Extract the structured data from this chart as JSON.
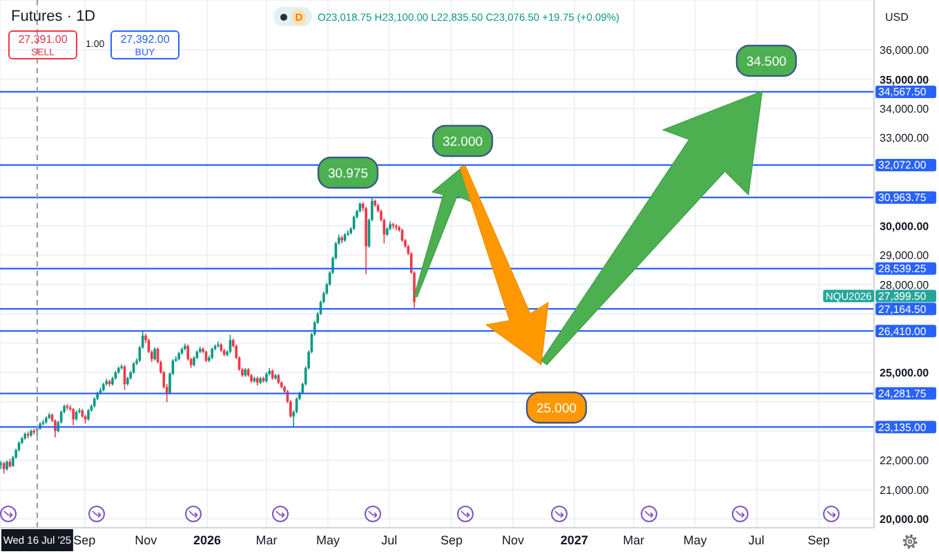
{
  "chart_data": {
    "type": "candlestick",
    "title": "Futures · 1D",
    "x": [
      "2025-06-10",
      "2025-06-13",
      "2025-06-16",
      "2025-06-19",
      "2025-06-22",
      "2025-06-25",
      "2025-06-28",
      "2025-07-01",
      "2025-07-04",
      "2025-07-07",
      "2025-07-10",
      "2025-07-13",
      "2025-07-16",
      "2025-07-19",
      "2025-07-22",
      "2025-07-25",
      "2025-07-28",
      "2025-07-31",
      "2025-08-03",
      "2025-08-06",
      "2025-08-09",
      "2025-08-12",
      "2025-08-15",
      "2025-08-18",
      "2025-08-21",
      "2025-08-24",
      "2025-08-27",
      "2025-08-30",
      "2025-09-02",
      "2025-09-05",
      "2025-09-08",
      "2025-09-11",
      "2025-09-14",
      "2025-09-17",
      "2025-09-20",
      "2025-09-23",
      "2025-09-26",
      "2025-09-29",
      "2025-10-02",
      "2025-10-05",
      "2025-10-08",
      "2025-10-11",
      "2025-10-14",
      "2025-10-17",
      "2025-10-20",
      "2025-10-23",
      "2025-10-26",
      "2025-10-29",
      "2025-11-01",
      "2025-11-04",
      "2025-11-07",
      "2025-11-10",
      "2025-11-13",
      "2025-11-16",
      "2025-11-19",
      "2025-11-22",
      "2025-11-25",
      "2025-11-28",
      "2025-12-01",
      "2025-12-04",
      "2025-12-07",
      "2025-12-10",
      "2025-12-13",
      "2025-12-16",
      "2025-12-19",
      "2025-12-22",
      "2025-12-25",
      "2025-12-28",
      "2025-12-31",
      "2026-01-03",
      "2026-01-06",
      "2026-01-09",
      "2026-01-12",
      "2026-01-15",
      "2026-01-18",
      "2026-01-21",
      "2026-01-24",
      "2026-01-27",
      "2026-01-30",
      "2026-02-02",
      "2026-02-05",
      "2026-02-08",
      "2026-02-11",
      "2026-02-14",
      "2026-02-17",
      "2026-02-20",
      "2026-02-23",
      "2026-02-26",
      "2026-03-01",
      "2026-03-04",
      "2026-03-07",
      "2026-03-10",
      "2026-03-13",
      "2026-03-16",
      "2026-03-19",
      "2026-03-22",
      "2026-03-25",
      "2026-03-28",
      "2026-03-31",
      "2026-04-03",
      "2026-04-06",
      "2026-04-09",
      "2026-04-12",
      "2026-04-15",
      "2026-04-18",
      "2026-04-21",
      "2026-04-24",
      "2026-04-27",
      "2026-04-30",
      "2026-05-03",
      "2026-05-06",
      "2026-05-09",
      "2026-05-12",
      "2026-05-15",
      "2026-05-18",
      "2026-05-21",
      "2026-05-24",
      "2026-05-27",
      "2026-05-30",
      "2026-06-02",
      "2026-06-05",
      "2026-06-08",
      "2026-06-11",
      "2026-06-14",
      "2026-06-17",
      "2026-06-20",
      "2026-06-23",
      "2026-06-26",
      "2026-06-29",
      "2026-07-02",
      "2026-07-05",
      "2026-07-08",
      "2026-07-11",
      "2026-07-14",
      "2026-07-17",
      "2026-07-20",
      "2026-07-23",
      "2026-07-26"
    ],
    "ohlc": [
      [
        21850,
        21980,
        21700,
        21900
      ],
      [
        21900,
        21950,
        21550,
        21700
      ],
      [
        21700,
        22000,
        21650,
        21950
      ],
      [
        21950,
        22050,
        21750,
        21800
      ],
      [
        21800,
        22150,
        21780,
        22100
      ],
      [
        22100,
        22400,
        22050,
        22350
      ],
      [
        22350,
        22650,
        22300,
        22600
      ],
      [
        22600,
        22800,
        22550,
        22750
      ],
      [
        22750,
        22950,
        22700,
        22900
      ],
      [
        22900,
        22980,
        22750,
        22850
      ],
      [
        22850,
        23050,
        22800,
        23000
      ],
      [
        23000,
        23080,
        22880,
        22950
      ],
      [
        23018.75,
        23100,
        22835.5,
        23076.5
      ],
      [
        23076.5,
        23300,
        23050,
        23250
      ],
      [
        23250,
        23380,
        23180,
        23300
      ],
      [
        23300,
        23500,
        23250,
        23450
      ],
      [
        23450,
        23620,
        23400,
        23550
      ],
      [
        23550,
        23600,
        23300,
        23350
      ],
      [
        23350,
        23400,
        22780,
        23000
      ],
      [
        23000,
        23350,
        22950,
        23300
      ],
      [
        23300,
        23700,
        23250,
        23650
      ],
      [
        23650,
        23900,
        23600,
        23850
      ],
      [
        23850,
        23920,
        23720,
        23800
      ],
      [
        23800,
        23880,
        23680,
        23750
      ],
      [
        23750,
        23780,
        23200,
        23400
      ],
      [
        23400,
        23700,
        23350,
        23650
      ],
      [
        23650,
        23780,
        23600,
        23700
      ],
      [
        23700,
        23750,
        23450,
        23500
      ],
      [
        23500,
        23550,
        23250,
        23400
      ],
      [
        23400,
        23750,
        23350,
        23700
      ],
      [
        23700,
        23900,
        23650,
        23850
      ],
      [
        23850,
        24150,
        23800,
        24100
      ],
      [
        24100,
        24350,
        24050,
        24300
      ],
      [
        24300,
        24480,
        24250,
        24400
      ],
      [
        24400,
        24650,
        24350,
        24600
      ],
      [
        24600,
        24780,
        24550,
        24700
      ],
      [
        24700,
        24750,
        24520,
        24600
      ],
      [
        24600,
        24850,
        24550,
        24800
      ],
      [
        24800,
        25050,
        24750,
        25000
      ],
      [
        25000,
        25200,
        24950,
        25150
      ],
      [
        25150,
        25280,
        25100,
        25200
      ],
      [
        25200,
        25250,
        24400,
        24600
      ],
      [
        24600,
        24850,
        24550,
        24800
      ],
      [
        24800,
        25050,
        24750,
        25000
      ],
      [
        25000,
        25350,
        24950,
        25300
      ],
      [
        25300,
        25480,
        25250,
        25400
      ],
      [
        25400,
        25900,
        25350,
        25850
      ],
      [
        25850,
        26400,
        25800,
        26250
      ],
      [
        26250,
        26320,
        26000,
        26100
      ],
      [
        26100,
        26150,
        25650,
        25700
      ],
      [
        25700,
        25750,
        25350,
        25450
      ],
      [
        25450,
        25850,
        25400,
        25800
      ],
      [
        25800,
        25850,
        25300,
        25350
      ],
      [
        25350,
        25400,
        24950,
        25000
      ],
      [
        25000,
        25050,
        24450,
        24500
      ],
      [
        24500,
        24600,
        23980,
        24300
      ],
      [
        24300,
        25000,
        24250,
        24950
      ],
      [
        24950,
        25450,
        24900,
        25400
      ],
      [
        25400,
        25550,
        25350,
        25450
      ],
      [
        25450,
        25700,
        25400,
        25650
      ],
      [
        25650,
        25850,
        25600,
        25800
      ],
      [
        25800,
        25980,
        25750,
        25900
      ],
      [
        25900,
        25950,
        25400,
        25450
      ],
      [
        25450,
        25500,
        25150,
        25250
      ],
      [
        25250,
        25550,
        25200,
        25500
      ],
      [
        25500,
        25750,
        25450,
        25700
      ],
      [
        25700,
        25880,
        25650,
        25800
      ],
      [
        25800,
        25850,
        25650,
        25700
      ],
      [
        25700,
        25750,
        25350,
        25400
      ],
      [
        25400,
        25580,
        25350,
        25500
      ],
      [
        25500,
        25850,
        25450,
        25800
      ],
      [
        25800,
        25950,
        25750,
        25900
      ],
      [
        25900,
        26050,
        25850,
        25950
      ],
      [
        25950,
        26000,
        25700,
        25750
      ],
      [
        25750,
        25800,
        25550,
        25600
      ],
      [
        25600,
        25750,
        25550,
        25700
      ],
      [
        25700,
        26280,
        25650,
        26100
      ],
      [
        26100,
        26150,
        25850,
        25900
      ],
      [
        25900,
        25950,
        25450,
        25500
      ],
      [
        25500,
        25550,
        25050,
        25100
      ],
      [
        25100,
        25150,
        24850,
        24900
      ],
      [
        24900,
        25150,
        24850,
        25100
      ],
      [
        25100,
        25150,
        24850,
        24900
      ],
      [
        24900,
        24950,
        24650,
        24700
      ],
      [
        24700,
        24850,
        24650,
        24800
      ],
      [
        24800,
        24850,
        24550,
        24650
      ],
      [
        24650,
        24850,
        24600,
        24800
      ],
      [
        24800,
        24850,
        24650,
        24700
      ],
      [
        24700,
        25000,
        24650,
        24950
      ],
      [
        24950,
        25150,
        24900,
        25050
      ],
      [
        25050,
        25100,
        24750,
        24800
      ],
      [
        24800,
        24950,
        24750,
        24900
      ],
      [
        24900,
        24950,
        24600,
        24650
      ],
      [
        24650,
        24700,
        24450,
        24500
      ],
      [
        24500,
        24550,
        24300,
        24350
      ],
      [
        24350,
        24400,
        23950,
        24000
      ],
      [
        24000,
        24050,
        23450,
        23500
      ],
      [
        23500,
        23700,
        23120,
        23650
      ],
      [
        23650,
        24150,
        23600,
        24100
      ],
      [
        24100,
        24350,
        24050,
        24300
      ],
      [
        24300,
        24650,
        24250,
        24600
      ],
      [
        24600,
        25200,
        24550,
        25150
      ],
      [
        25150,
        25750,
        25100,
        25700
      ],
      [
        25700,
        26350,
        25650,
        26300
      ],
      [
        26300,
        26750,
        26250,
        26700
      ],
      [
        26700,
        27050,
        26650,
        27000
      ],
      [
        27000,
        27450,
        26950,
        27400
      ],
      [
        27400,
        27750,
        27350,
        27700
      ],
      [
        27700,
        28050,
        27650,
        28000
      ],
      [
        28000,
        28450,
        27950,
        28400
      ],
      [
        28400,
        28950,
        28350,
        28900
      ],
      [
        28900,
        29450,
        28850,
        29400
      ],
      [
        29400,
        29700,
        29350,
        29600
      ],
      [
        29600,
        29650,
        29400,
        29500
      ],
      [
        29500,
        29750,
        29450,
        29700
      ],
      [
        29700,
        29850,
        29650,
        29750
      ],
      [
        29750,
        29950,
        29700,
        29900
      ],
      [
        29900,
        30350,
        29850,
        30300
      ],
      [
        30300,
        30550,
        30250,
        30500
      ],
      [
        30500,
        30800,
        30450,
        30750
      ],
      [
        30750,
        30800,
        30500,
        30600
      ],
      [
        30600,
        30650,
        28350,
        29300
      ],
      [
        29300,
        30250,
        29250,
        30200
      ],
      [
        30200,
        30950,
        30150,
        30850
      ],
      [
        30850,
        30900,
        30650,
        30700
      ],
      [
        30700,
        30750,
        30450,
        30500
      ],
      [
        30500,
        30550,
        30150,
        30200
      ],
      [
        30200,
        30250,
        29400,
        29700
      ],
      [
        29700,
        29950,
        29650,
        29900
      ],
      [
        29900,
        30150,
        29850,
        30050
      ],
      [
        30050,
        30100,
        29900,
        30000
      ],
      [
        30000,
        30050,
        29850,
        29950
      ],
      [
        29950,
        30000,
        29800,
        29850
      ],
      [
        29850,
        29900,
        29450,
        29500
      ],
      [
        29500,
        29550,
        29250,
        29300
      ],
      [
        29300,
        29350,
        29000,
        29050
      ],
      [
        29050,
        29100,
        28350,
        28400
      ],
      [
        28400,
        28450,
        27200,
        27399.5
      ]
    ],
    "colors": [
      "#089981",
      "#f23645",
      "#089981",
      "#f23645",
      "#089981",
      "#089981",
      "#089981",
      "#089981",
      "#089981",
      "#f23645",
      "#089981",
      "#f23645",
      "#089981",
      "#089981",
      "#089981",
      "#089981",
      "#089981",
      "#f23645",
      "#f23645",
      "#089981",
      "#089981",
      "#089981",
      "#f23645",
      "#f23645",
      "#f23645",
      "#089981",
      "#089981",
      "#f23645",
      "#f23645",
      "#089981",
      "#089981",
      "#089981",
      "#089981",
      "#089981",
      "#089981",
      "#089981",
      "#f23645",
      "#089981",
      "#089981",
      "#089981",
      "#089981",
      "#f23645",
      "#089981",
      "#089981",
      "#089981",
      "#089981",
      "#089981",
      "#089981",
      "#f23645",
      "#f23645",
      "#f23645",
      "#089981",
      "#f23645",
      "#f23645",
      "#f23645",
      "#f23645",
      "#089981",
      "#089981",
      "#089981",
      "#089981",
      "#089981",
      "#089981",
      "#f23645",
      "#f23645",
      "#089981",
      "#089981",
      "#089981",
      "#f23645",
      "#f23645",
      "#089981",
      "#089981",
      "#089981",
      "#089981",
      "#f23645",
      "#f23645",
      "#089981",
      "#089981",
      "#f23645",
      "#f23645",
      "#f23645",
      "#f23645",
      "#089981",
      "#f23645",
      "#f23645",
      "#089981",
      "#f23645",
      "#089981",
      "#f23645",
      "#089981",
      "#089981",
      "#f23645",
      "#089981",
      "#f23645",
      "#f23645",
      "#f23645",
      "#f23645",
      "#f23645",
      "#089981",
      "#089981",
      "#089981",
      "#089981",
      "#089981",
      "#089981",
      "#089981",
      "#089981",
      "#089981",
      "#089981",
      "#089981",
      "#089981",
      "#089981",
      "#089981",
      "#089981",
      "#089981",
      "#f23645",
      "#089981",
      "#089981",
      "#089981",
      "#089981",
      "#089981",
      "#089981",
      "#f23645",
      "#f23645",
      "#089981",
      "#089981",
      "#f23645",
      "#f23645",
      "#f23645",
      "#f23645",
      "#089981",
      "#089981",
      "#f23645",
      "#f23645",
      "#f23645",
      "#f23645",
      "#f23645",
      "#f23645",
      "#f23645",
      "#f23645"
    ],
    "xlim": [
      "2025-06-09",
      "2027-10-26"
    ],
    "xticks": [
      {
        "value": "2025-09-01",
        "label": "Sep"
      },
      {
        "value": "2025-11-01",
        "label": "Nov"
      },
      {
        "value": "2026-01-01",
        "label": "2026"
      },
      {
        "value": "2026-03-01",
        "label": "Mar"
      },
      {
        "value": "2026-05-01",
        "label": "May"
      },
      {
        "value": "2026-07-01",
        "label": "Jul"
      },
      {
        "value": "2026-09-01",
        "label": "Sep"
      },
      {
        "value": "2026-11-01",
        "label": "Nov"
      },
      {
        "value": "2027-01-01",
        "label": "2027"
      },
      {
        "value": "2027-03-01",
        "label": "Mar"
      },
      {
        "value": "2027-05-01",
        "label": "May"
      },
      {
        "value": "2027-07-01",
        "label": "Jul"
      },
      {
        "value": "2027-09-01",
        "label": "Sep"
      }
    ],
    "ylim": [
      19700,
      37700
    ],
    "yticks": [
      {
        "value": 20000,
        "label": "20,000.00"
      },
      {
        "value": 21000,
        "label": "21,000.00"
      },
      {
        "value": 22000,
        "label": "22,000.00"
      },
      {
        "value": 23000,
        "label": null
      },
      {
        "value": 24000,
        "label": null
      },
      {
        "value": 25000,
        "label": "25,000.00"
      },
      {
        "value": 26000,
        "label": null
      },
      {
        "value": 27000,
        "label": null
      },
      {
        "value": 28000,
        "label": "28,000.00"
      },
      {
        "value": 29000,
        "label": "29,000.00"
      },
      {
        "value": 30000,
        "label": "30,000.00"
      },
      {
        "value": 33000,
        "label": "33,000.00"
      },
      {
        "value": 34000,
        "label": "34,000.00"
      },
      {
        "value": 35000,
        "label": "35,000.00"
      },
      {
        "value": 36000,
        "label": "36,000.00"
      }
    ],
    "grid": true,
    "ref_lines": [
      {
        "axis": "y",
        "value": 34567.5,
        "label": "34,567.50",
        "color": "#2962ff"
      },
      {
        "axis": "y",
        "value": 32072,
        "label": "32,072.00",
        "color": "#2962ff"
      },
      {
        "axis": "y",
        "value": 30963.75,
        "label": "30,963.75",
        "color": "#2962ff"
      },
      {
        "axis": "y",
        "value": 28539.25,
        "label": "28,539.25",
        "color": "#2962ff"
      },
      {
        "axis": "y",
        "value": 27164.5,
        "label": "27,164.50",
        "color": "#2962ff"
      },
      {
        "axis": "y",
        "value": 26410,
        "label": "26,410.00",
        "color": "#2962ff"
      },
      {
        "axis": "y",
        "value": 24281.75,
        "label": "24,281.75",
        "color": "#2962ff"
      },
      {
        "axis": "y",
        "value": 23135,
        "label": "23,135.00",
        "color": "#2962ff"
      },
      {
        "axis": "x",
        "value": "2025-07-16",
        "label": "Wed 16 Jul '25",
        "color": "#9598a1",
        "line_style": "dashed"
      }
    ],
    "annotations": [
      "30.975",
      "32.000",
      "25.000",
      "34.500",
      "NQU2026",
      "27,399.50",
      "D",
      "O23,018.75 H23,100.00 L22,835.50 C23,076.50 +19.75 (+0.09%)",
      "27,391.00",
      "SELL",
      "1.00",
      "27,392.00",
      "BUY",
      "USD"
    ]
  }
}
